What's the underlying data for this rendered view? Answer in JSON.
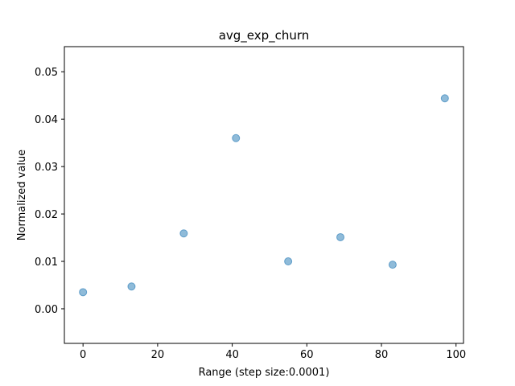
{
  "chart_data": {
    "type": "scatter",
    "title": "avg_exp_churn",
    "xlabel": "Range (step size:0.0001)",
    "ylabel": "Normalized value",
    "xlim": [
      -5,
      102
    ],
    "ylim": [
      -0.0073,
      0.0553
    ],
    "xticks": [
      0,
      20,
      40,
      60,
      80,
      100
    ],
    "xtick_labels": [
      "0",
      "20",
      "40",
      "60",
      "80",
      "100"
    ],
    "yticks": [
      0.0,
      0.01,
      0.02,
      0.03,
      0.04,
      0.05
    ],
    "ytick_labels": [
      "0.00",
      "0.01",
      "0.02",
      "0.03",
      "0.04",
      "0.05"
    ],
    "grid": false,
    "legend": "none",
    "marker_color": "#1f77b4",
    "marker_alpha": 0.5,
    "series": [
      {
        "x": [
          0,
          13,
          27,
          41,
          55,
          69,
          83,
          97
        ],
        "y": [
          0.0035,
          0.0047,
          0.0159,
          0.036,
          0.01,
          0.0151,
          0.0093,
          0.0444
        ]
      }
    ]
  }
}
